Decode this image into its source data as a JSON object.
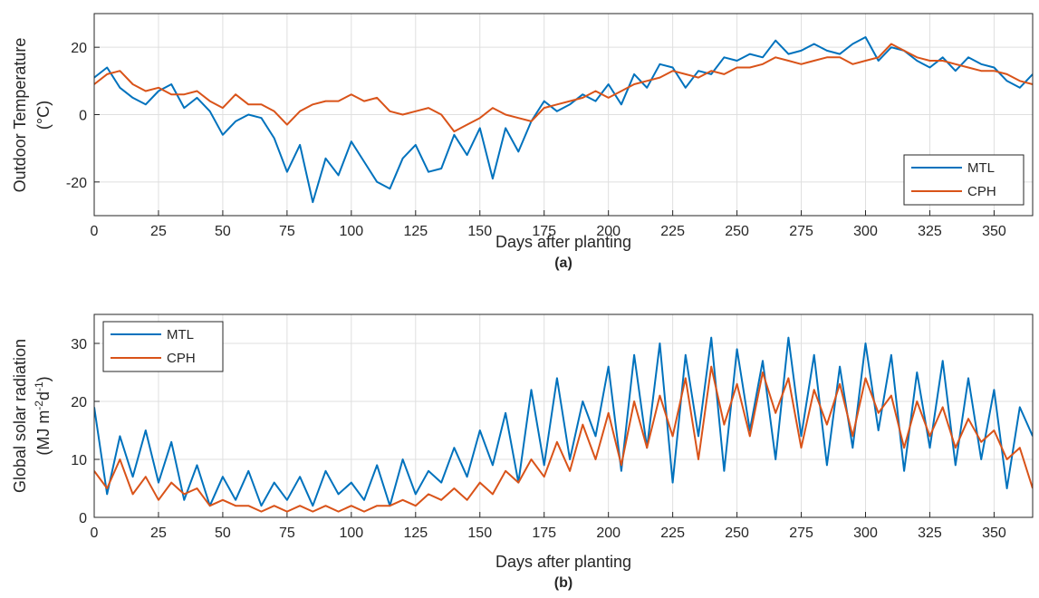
{
  "chart_data": [
    {
      "type": "line",
      "panel_label": "(a)",
      "xlabel": "Days after planting",
      "ylabel_lines": [
        "Outdoor Temperature",
        "(°C)"
      ],
      "xlim": [
        0,
        365
      ],
      "ylim": [
        -30,
        30
      ],
      "xticks": [
        0,
        25,
        50,
        75,
        100,
        125,
        150,
        175,
        200,
        225,
        250,
        275,
        300,
        325,
        350
      ],
      "yticks": [
        -20,
        0,
        20
      ],
      "grid": true,
      "legend_position": "bottom-right",
      "colors": {
        "MTL": "#0072bd",
        "CPH": "#d95319"
      },
      "series": [
        {
          "name": "MTL",
          "x": [
            0,
            5,
            10,
            15,
            20,
            25,
            30,
            35,
            40,
            45,
            50,
            55,
            60,
            65,
            70,
            75,
            80,
            85,
            90,
            95,
            100,
            105,
            110,
            115,
            120,
            125,
            130,
            135,
            140,
            145,
            150,
            155,
            160,
            165,
            170,
            175,
            180,
            185,
            190,
            195,
            200,
            205,
            210,
            215,
            220,
            225,
            230,
            235,
            240,
            245,
            250,
            255,
            260,
            265,
            270,
            275,
            280,
            285,
            290,
            295,
            300,
            305,
            310,
            315,
            320,
            325,
            330,
            335,
            340,
            345,
            350,
            355,
            360,
            365
          ],
          "values": [
            11,
            14,
            8,
            5,
            3,
            7,
            9,
            2,
            5,
            1,
            -6,
            -2,
            0,
            -1,
            -7,
            -17,
            -9,
            -26,
            -13,
            -18,
            -8,
            -14,
            -20,
            -22,
            -13,
            -9,
            -17,
            -16,
            -6,
            -12,
            -4,
            -19,
            -4,
            -11,
            -2,
            4,
            1,
            3,
            6,
            4,
            9,
            3,
            12,
            8,
            15,
            14,
            8,
            13,
            12,
            17,
            16,
            18,
            17,
            22,
            18,
            19,
            21,
            19,
            18,
            21,
            23,
            16,
            20,
            19,
            16,
            14,
            17,
            13,
            17,
            15,
            14,
            10,
            8,
            12
          ]
        },
        {
          "name": "CPH",
          "x": [
            0,
            5,
            10,
            15,
            20,
            25,
            30,
            35,
            40,
            45,
            50,
            55,
            60,
            65,
            70,
            75,
            80,
            85,
            90,
            95,
            100,
            105,
            110,
            115,
            120,
            125,
            130,
            135,
            140,
            145,
            150,
            155,
            160,
            165,
            170,
            175,
            180,
            185,
            190,
            195,
            200,
            205,
            210,
            215,
            220,
            225,
            230,
            235,
            240,
            245,
            250,
            255,
            260,
            265,
            270,
            275,
            280,
            285,
            290,
            295,
            300,
            305,
            310,
            315,
            320,
            325,
            330,
            335,
            340,
            345,
            350,
            355,
            360,
            365
          ],
          "values": [
            9,
            12,
            13,
            9,
            7,
            8,
            6,
            6,
            7,
            4,
            2,
            6,
            3,
            3,
            1,
            -3,
            1,
            3,
            4,
            4,
            6,
            4,
            5,
            1,
            0,
            1,
            2,
            0,
            -5,
            -3,
            -1,
            2,
            0,
            -1,
            -2,
            2,
            3,
            4,
            5,
            7,
            5,
            7,
            9,
            10,
            11,
            13,
            12,
            11,
            13,
            12,
            14,
            14,
            15,
            17,
            16,
            15,
            16,
            17,
            17,
            15,
            16,
            17,
            21,
            19,
            17,
            16,
            16,
            15,
            14,
            13,
            13,
            12,
            10,
            9
          ]
        }
      ]
    },
    {
      "type": "line",
      "panel_label": "(b)",
      "xlabel": "Days after planting",
      "ylabel_lines": [
        "Global solar radiation",
        "(MJ m",
        "-2",
        "d",
        "-1",
        ")"
      ],
      "xlim": [
        0,
        365
      ],
      "ylim": [
        0,
        35
      ],
      "xticks": [
        0,
        25,
        50,
        75,
        100,
        125,
        150,
        175,
        200,
        225,
        250,
        275,
        300,
        325,
        350
      ],
      "yticks": [
        0,
        10,
        20,
        30
      ],
      "grid": true,
      "legend_position": "top-left",
      "colors": {
        "MTL": "#0072bd",
        "CPH": "#d95319"
      },
      "series": [
        {
          "name": "MTL",
          "x": [
            0,
            5,
            10,
            15,
            20,
            25,
            30,
            35,
            40,
            45,
            50,
            55,
            60,
            65,
            70,
            75,
            80,
            85,
            90,
            95,
            100,
            105,
            110,
            115,
            120,
            125,
            130,
            135,
            140,
            145,
            150,
            155,
            160,
            165,
            170,
            175,
            180,
            185,
            190,
            195,
            200,
            205,
            210,
            215,
            220,
            225,
            230,
            235,
            240,
            245,
            250,
            255,
            260,
            265,
            270,
            275,
            280,
            285,
            290,
            295,
            300,
            305,
            310,
            315,
            320,
            325,
            330,
            335,
            340,
            345,
            350,
            355,
            360,
            365
          ],
          "values": [
            19,
            4,
            14,
            7,
            15,
            6,
            13,
            3,
            9,
            2,
            7,
            3,
            8,
            2,
            6,
            3,
            7,
            2,
            8,
            4,
            6,
            3,
            9,
            2,
            10,
            4,
            8,
            6,
            12,
            7,
            15,
            9,
            18,
            6,
            22,
            9,
            24,
            10,
            20,
            14,
            26,
            8,
            28,
            12,
            30,
            6,
            28,
            14,
            31,
            8,
            29,
            15,
            27,
            10,
            31,
            14,
            28,
            9,
            26,
            12,
            30,
            15,
            28,
            8,
            25,
            12,
            27,
            9,
            24,
            10,
            22,
            5,
            19,
            14
          ]
        },
        {
          "name": "CPH",
          "x": [
            0,
            5,
            10,
            15,
            20,
            25,
            30,
            35,
            40,
            45,
            50,
            55,
            60,
            65,
            70,
            75,
            80,
            85,
            90,
            95,
            100,
            105,
            110,
            115,
            120,
            125,
            130,
            135,
            140,
            145,
            150,
            155,
            160,
            165,
            170,
            175,
            180,
            185,
            190,
            195,
            200,
            205,
            210,
            215,
            220,
            225,
            230,
            235,
            240,
            245,
            250,
            255,
            260,
            265,
            270,
            275,
            280,
            285,
            290,
            295,
            300,
            305,
            310,
            315,
            320,
            325,
            330,
            335,
            340,
            345,
            350,
            355,
            360,
            365
          ],
          "values": [
            8,
            5,
            10,
            4,
            7,
            3,
            6,
            4,
            5,
            2,
            3,
            2,
            2,
            1,
            2,
            1,
            2,
            1,
            2,
            1,
            2,
            1,
            2,
            2,
            3,
            2,
            4,
            3,
            5,
            3,
            6,
            4,
            8,
            6,
            10,
            7,
            13,
            8,
            16,
            10,
            18,
            9,
            20,
            12,
            21,
            14,
            24,
            10,
            26,
            16,
            23,
            14,
            25,
            18,
            24,
            12,
            22,
            16,
            23,
            14,
            24,
            18,
            21,
            12,
            20,
            14,
            19,
            12,
            17,
            13,
            15,
            10,
            12,
            5
          ]
        }
      ]
    }
  ]
}
